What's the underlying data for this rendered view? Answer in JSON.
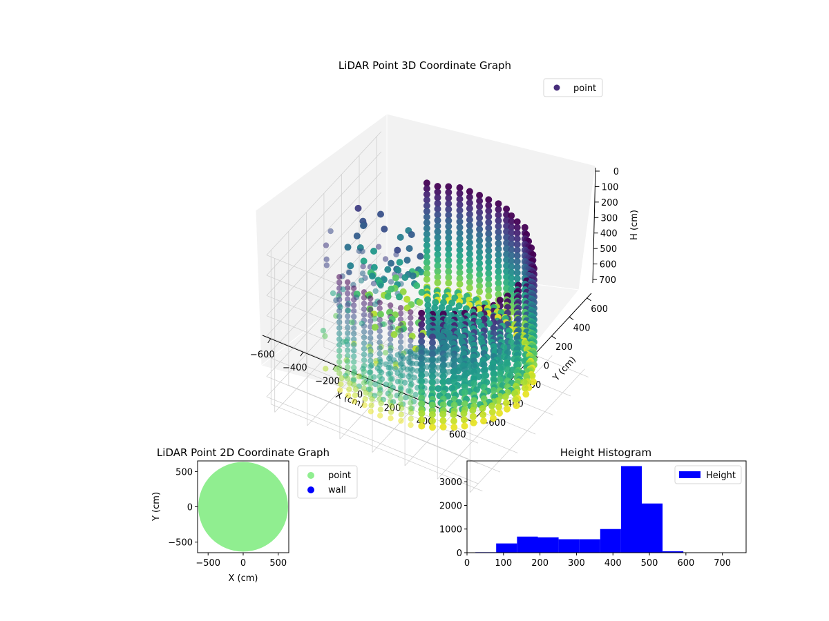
{
  "chart_data": [
    {
      "type": "scatter3d",
      "title": "LiDAR Point 3D Coordinate Graph",
      "xlabel": "X (cm)",
      "ylabel": "Y (cm)",
      "zlabel": "H (cm)",
      "xlim": [
        -650,
        650
      ],
      "ylim": [
        -650,
        650
      ],
      "zlim": [
        0,
        760
      ],
      "z_inverted": true,
      "x_ticks": [
        -600,
        -400,
        -200,
        0,
        200,
        400,
        600
      ],
      "y_ticks": [
        -600,
        -400,
        -200,
        0,
        200,
        400,
        600
      ],
      "z_ticks": [
        0,
        100,
        200,
        300,
        400,
        500,
        600,
        700
      ],
      "legend": {
        "position": "top-right",
        "entries": [
          {
            "name": "point",
            "color": "#472d7b"
          }
        ]
      },
      "colormap": "viridis",
      "color_by": "distance-from-center",
      "shape": "ring-wall",
      "wall_radius_cm": 560,
      "wall_top_cm": 60,
      "wall_bottom_cm": 640,
      "wall_opening_deg": [
        125,
        235
      ],
      "grid": true
    },
    {
      "type": "scatter",
      "title": "LiDAR Point 2D Coordinate Graph",
      "xlabel": "X (cm)",
      "ylabel": "Y (cm)",
      "xlim": [
        -650,
        650
      ],
      "ylim": [
        -650,
        650
      ],
      "x_ticks": [
        -500,
        0,
        500
      ],
      "y_ticks": [
        -500,
        0,
        500
      ],
      "series": [
        {
          "name": "point",
          "color": "#90ee90",
          "shape": "filled-disk",
          "radius_cm": 640
        },
        {
          "name": "wall",
          "color": "#0000ff"
        }
      ],
      "legend": {
        "position": "outside-right-top"
      }
    },
    {
      "type": "bar",
      "subtype": "histogram",
      "title": "Height Histogram",
      "xlim": [
        0,
        765
      ],
      "ylim": [
        0,
        3880
      ],
      "x_ticks": [
        0,
        100,
        200,
        300,
        400,
        500,
        600,
        700
      ],
      "y_ticks": [
        0,
        1000,
        2000,
        3000
      ],
      "bin_edges": [
        23,
        80,
        137,
        194,
        251,
        308,
        365,
        422,
        479,
        536,
        593,
        650,
        707
      ],
      "values": [
        20,
        390,
        680,
        650,
        570,
        570,
        1000,
        3660,
        2080,
        60,
        10,
        5
      ],
      "series": [
        {
          "name": "Height",
          "color": "#0000ff"
        }
      ],
      "legend": {
        "position": "top-right"
      }
    }
  ]
}
